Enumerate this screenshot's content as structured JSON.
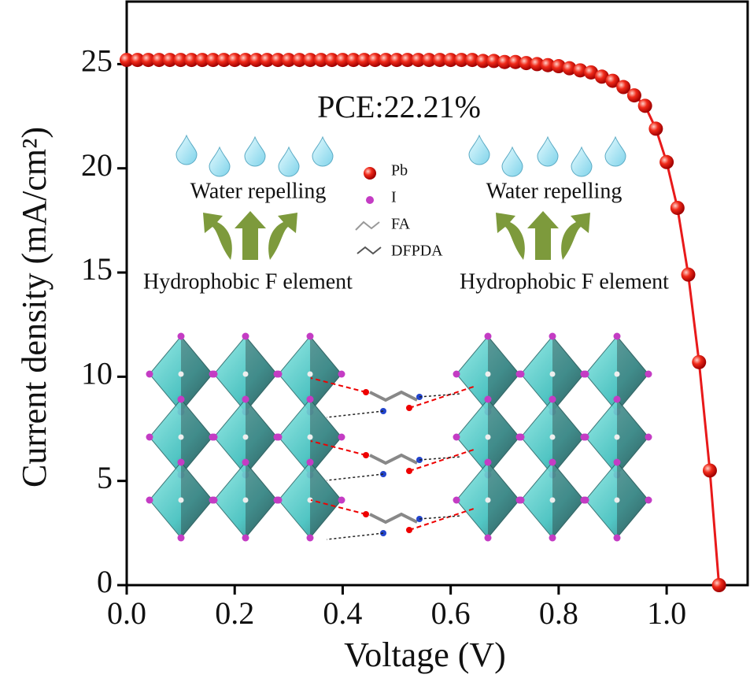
{
  "chart_data": {
    "type": "line",
    "x_label": "Voltage (V)",
    "y_label": "Current density (mA/cm²)",
    "xlim": [
      0,
      1.15
    ],
    "ylim": [
      0,
      28
    ],
    "xticks": [
      {
        "value": 0,
        "label": "0.0"
      },
      0.2,
      0.4,
      0.6,
      0.8,
      {
        "value": 1,
        "label": "1.0"
      }
    ],
    "yticks": [
      0,
      5,
      10,
      15,
      20,
      25
    ],
    "x": [
      0,
      0.02,
      0.04,
      0.06,
      0.08,
      0.1,
      0.12,
      0.14,
      0.16,
      0.18,
      0.2,
      0.22,
      0.24,
      0.26,
      0.28,
      0.3,
      0.32,
      0.34,
      0.36,
      0.38,
      0.4,
      0.42,
      0.44,
      0.46,
      0.48,
      0.5,
      0.52,
      0.54,
      0.56,
      0.58,
      0.6,
      0.62,
      0.64,
      0.66,
      0.68,
      0.7,
      0.72,
      0.74,
      0.76,
      0.78,
      0.8,
      0.82,
      0.84,
      0.86,
      0.88,
      0.9,
      0.92,
      0.94,
      0.96,
      0.98,
      1.0,
      1.02,
      1.04,
      1.06,
      1.08,
      1.097
    ],
    "series": [
      {
        "name": "DFPDA",
        "color": "#e8191a",
        "values": [
          25.2,
          25.2,
          25.2,
          25.2,
          25.2,
          25.2,
          25.2,
          25.2,
          25.2,
          25.2,
          25.2,
          25.2,
          25.2,
          25.2,
          25.2,
          25.2,
          25.2,
          25.2,
          25.2,
          25.2,
          25.2,
          25.2,
          25.2,
          25.2,
          25.2,
          25.2,
          25.2,
          25.2,
          25.2,
          25.2,
          25.2,
          25.2,
          25.2,
          25.15,
          25.15,
          25.1,
          25.1,
          25.05,
          25.0,
          24.95,
          24.9,
          24.8,
          24.7,
          24.6,
          24.4,
          24.2,
          23.9,
          23.5,
          23.0,
          21.9,
          20.3,
          18.1,
          14.9,
          10.7,
          5.5,
          0
        ]
      }
    ],
    "annotations": {
      "pce": "PCE:22.21%",
      "water_left": "Water repelling",
      "water_right": "Water repelling",
      "hydro_left": "Hydrophobic F element",
      "hydro_right": "Hydrophobic F element",
      "legend": [
        "Pb",
        "I",
        "FA",
        "DFPDA"
      ]
    }
  }
}
